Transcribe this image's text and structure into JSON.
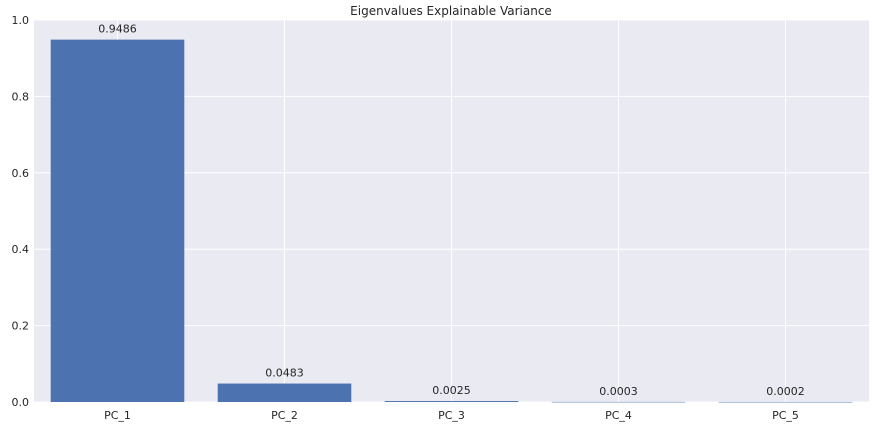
{
  "chart_data": {
    "type": "bar",
    "title": "Eigenvalues Explainable Variance",
    "xlabel": "",
    "ylabel": "",
    "categories": [
      "PC_1",
      "PC_2",
      "PC_3",
      "PC_4",
      "PC_5"
    ],
    "values": [
      0.9486,
      0.0483,
      0.0025,
      0.0003,
      0.0002
    ],
    "value_labels": [
      "0.9486",
      "0.0483",
      "0.0025",
      "0.0003",
      "0.0002"
    ],
    "ylim": [
      0,
      1.0
    ],
    "yticks": [
      0.0,
      0.2,
      0.4,
      0.6,
      0.8,
      1.0
    ],
    "ytick_labels": [
      "0.0",
      "0.2",
      "0.4",
      "0.6",
      "0.8",
      "1.0"
    ],
    "grid": true,
    "colors": {
      "bar": "#4c72b0",
      "plot_background": "#eaeaf2",
      "grid": "#ffffff",
      "text": "#262626"
    }
  }
}
